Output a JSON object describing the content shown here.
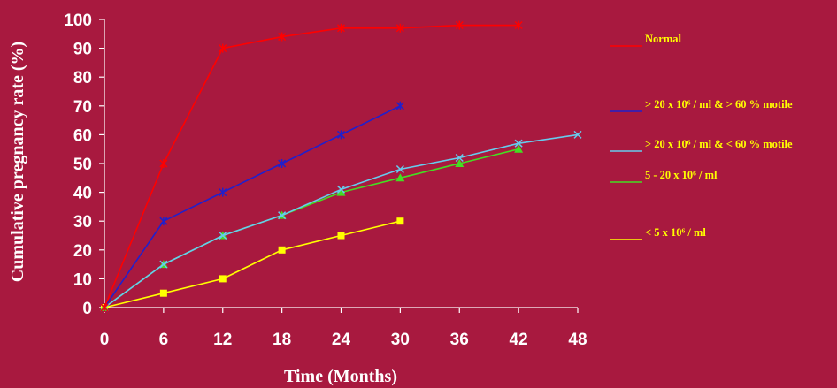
{
  "chart_data": {
    "type": "line",
    "xlabel": "Time (Months)",
    "ylabel": "Cumulative pregnancy rate (%)",
    "xlim": [
      0,
      48
    ],
    "ylim": [
      0,
      100
    ],
    "x_ticks": [
      "0",
      "6",
      "12",
      "18",
      "24",
      "30",
      "36",
      "42",
      "48"
    ],
    "y_ticks": [
      "0",
      "10",
      "20",
      "30",
      "40",
      "50",
      "60",
      "70",
      "80",
      "90",
      "100"
    ],
    "legend_position": "right",
    "legend_text_color": "#FFFF00",
    "series": [
      {
        "name": "Normal",
        "color": "#FF0000",
        "marker": "star",
        "x": [
          0,
          6,
          12,
          18,
          24,
          30,
          36,
          42
        ],
        "y": [
          0,
          50,
          90,
          94,
          97,
          97,
          98,
          98
        ]
      },
      {
        "name": "> 20 x 10⁶ / ml & > 60 % motile",
        "color": "#2020CC",
        "marker": "star",
        "x": [
          0,
          6,
          12,
          18,
          24,
          30
        ],
        "y": [
          0,
          30,
          40,
          50,
          60,
          70
        ]
      },
      {
        "name": "> 20 x 10⁶ / ml & < 60 % motile",
        "color": "#66CCEE",
        "marker": "x",
        "x": [
          0,
          6,
          12,
          18,
          24,
          30,
          36,
          42,
          48
        ],
        "y": [
          0,
          15,
          25,
          32,
          41,
          48,
          52,
          57,
          60
        ]
      },
      {
        "name": "5 - 20 x 10⁶ / ml",
        "color": "#44DD22",
        "marker": "triangle",
        "x": [
          0,
          6,
          12,
          18,
          24,
          30,
          36,
          42
        ],
        "y": [
          0,
          15,
          25,
          32,
          40,
          45,
          50,
          55
        ]
      },
      {
        "name": "< 5 x 10⁶ / ml",
        "color": "#FFFF00",
        "marker": "square",
        "x": [
          0,
          6,
          12,
          18,
          24,
          30
        ],
        "y": [
          0,
          5,
          10,
          20,
          25,
          30
        ]
      }
    ]
  }
}
